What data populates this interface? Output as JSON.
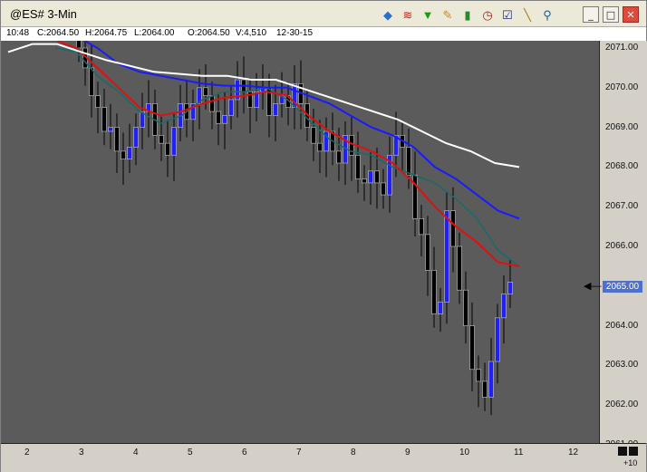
{
  "window": {
    "title": "@ES# 3-Min",
    "toolbar_icons": [
      "plot-icon",
      "studies-icon",
      "indicator-icon",
      "draw-icon",
      "chart-type-icon",
      "time-icon",
      "order-icon",
      "pencil-icon",
      "broom-icon"
    ],
    "controls": {
      "minimize": "_",
      "maximize": "□",
      "close": "✕"
    }
  },
  "quote": {
    "time": "10:48",
    "close": "C:2064.50",
    "high": "H:2064.75",
    "low": "L:2064.00",
    "open": "O:2064.50",
    "volume": "V:4,510",
    "date": "12-30-15"
  },
  "axis": {
    "price_labels": [
      "2071.00",
      "2070.00",
      "2069.00",
      "2068.00",
      "2067.00",
      "2066.00",
      "2065.00",
      "2064.00",
      "2063.00",
      "2062.00",
      "2061.00"
    ],
    "current_price": "2065.00",
    "time_labels": [
      "2",
      "3",
      "4",
      "5",
      "6",
      "7",
      "8",
      "9",
      "10",
      "11",
      "12"
    ],
    "zoom_label": "+10"
  },
  "colors": {
    "plot_bg": "#5b5b5b",
    "up_bar": "#1f1fff",
    "down_bar": "#000000",
    "ma_fast": "#1a6a6a",
    "ma_red": "#e01010",
    "ma_blue": "#1a1aff",
    "ma_white": "#ffffff"
  },
  "chart_data": {
    "type": "line",
    "title": "@ES# 3-Min",
    "x_ticks": [
      "2",
      "3",
      "4",
      "5",
      "6",
      "7",
      "8",
      "9",
      "10",
      "11",
      "12"
    ],
    "ylim": [
      2060.7,
      2071.2
    ],
    "series": [
      {
        "values": [
          2071.0,
          2070.9,
          2070.3,
          2069.9,
          2069.4,
          2069.1,
          2069.3,
          2069.7,
          2069.9,
          2069.9,
          2070.0,
          2069.7,
          2069.2,
          2068.7,
          2068.4,
          2068.3,
          2068.0,
          2067.8,
          2067.6,
          2067.2,
          2066.7,
          2065.9,
          2065.5
        ]
      },
      {
        "values": [
          2071.2,
          2071.0,
          2070.5,
          2070.0,
          2069.5,
          2069.3,
          2069.4,
          2069.6,
          2069.75,
          2069.8,
          2069.9,
          2069.8,
          2069.3,
          2068.9,
          2068.6,
          2068.4,
          2068.1,
          2067.6,
          2067.0,
          2066.5,
          2066.1,
          2065.6,
          2065.5
        ]
      },
      {
        "values": [
          2071.5,
          2071.3,
          2071.0,
          2070.6,
          2070.4,
          2070.3,
          2070.2,
          2070.1,
          2070.05,
          2070.05,
          2070.0,
          2070.0,
          2069.8,
          2069.6,
          2069.3,
          2069.0,
          2068.8,
          2068.5,
          2068.0,
          2067.7,
          2067.3,
          2066.9,
          2066.7
        ]
      },
      {
        "values": [
          2070.9,
          2071.1,
          2071.1,
          2070.9,
          2070.7,
          2070.55,
          2070.4,
          2070.35,
          2070.3,
          2070.3,
          2070.2,
          2070.2,
          2070.0,
          2069.8,
          2069.6,
          2069.4,
          2069.2,
          2068.9,
          2068.6,
          2068.4,
          2068.1,
          2068.0
        ]
      }
    ],
    "bars_close": [
      2071.0,
      2070.5,
      2069.8,
      2069.5,
      2068.9,
      2069.0,
      2068.4,
      2068.2,
      2068.5,
      2069.0,
      2069.4,
      2069.6,
      2068.8,
      2068.6,
      2068.3,
      2069.0,
      2069.6,
      2069.2,
      2069.6,
      2070.0,
      2069.8,
      2069.4,
      2069.1,
      2069.3,
      2069.7,
      2070.2,
      2069.9,
      2069.5,
      2069.9,
      2070.0,
      2069.3,
      2069.6,
      2069.8,
      2069.5,
      2070.1,
      2069.6,
      2069.0,
      2068.6,
      2068.4,
      2068.9,
      2068.4,
      2068.1,
      2068.8,
      2068.3,
      2067.7,
      2067.6,
      2067.9,
      2067.6,
      2067.3,
      2068.3,
      2068.8,
      2068.5,
      2067.8,
      2066.7,
      2066.3,
      2065.4,
      2064.3,
      2064.6,
      2066.9,
      2066.0,
      2064.9,
      2064.0,
      2062.9,
      2062.6,
      2062.2,
      2063.1,
      2064.2,
      2064.8,
      2065.1
    ]
  }
}
